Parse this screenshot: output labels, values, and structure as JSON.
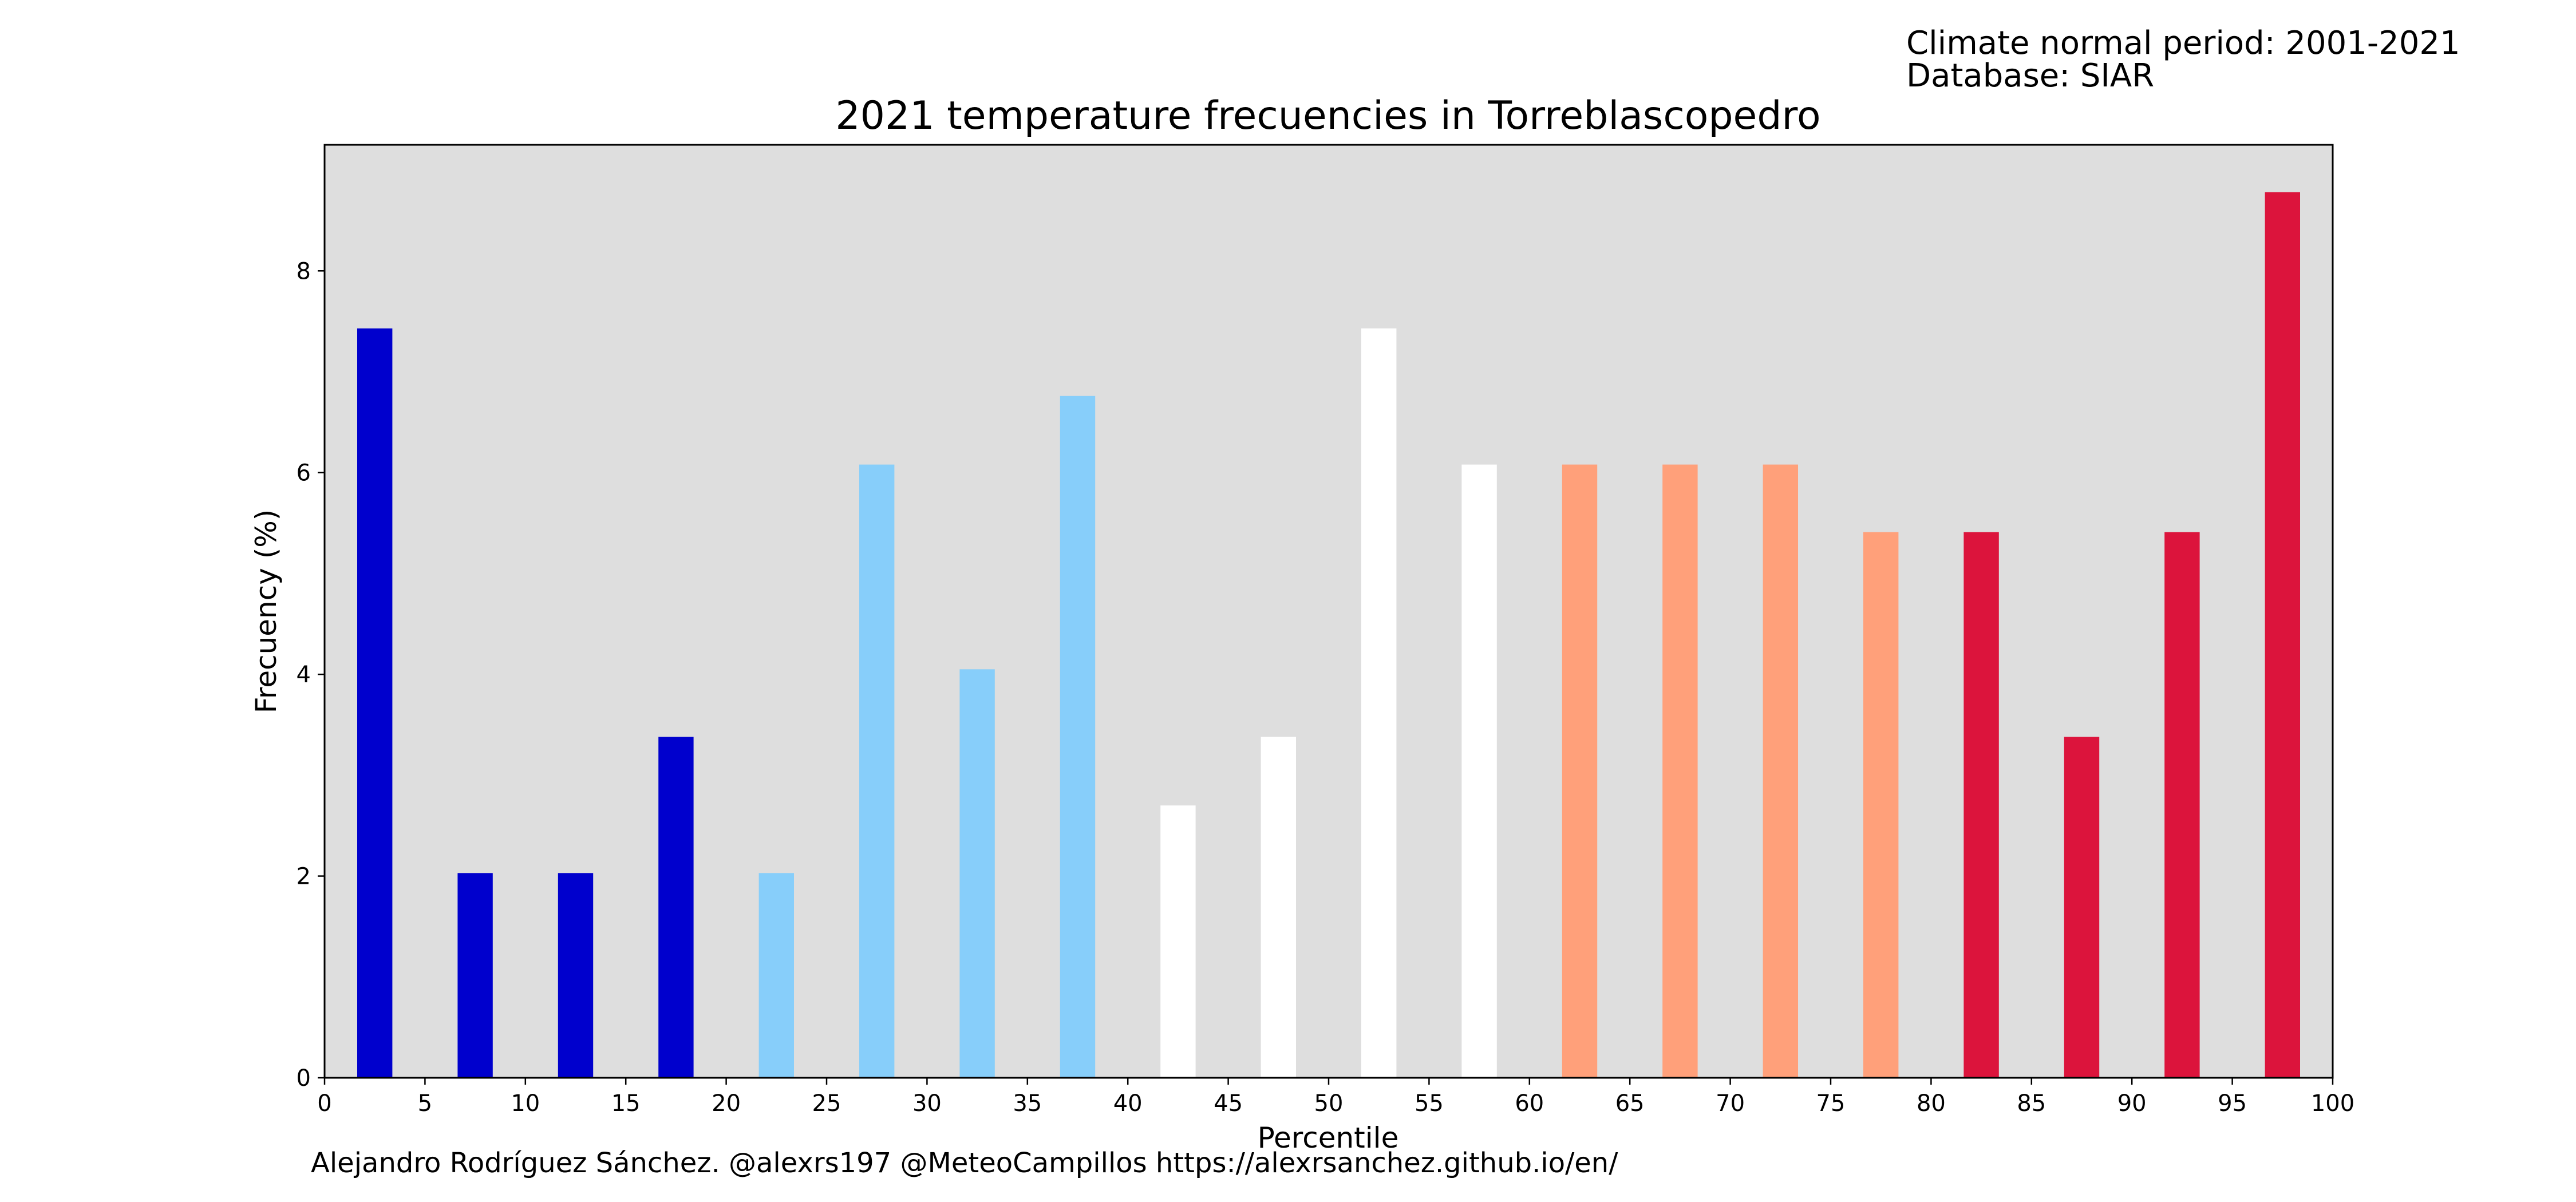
{
  "header": {
    "normal_period": "Climate normal period: 2001-2021",
    "database": "Database: SIAR"
  },
  "footer": {
    "credit": "Alejandro Rodríguez Sánchez. @alexrs197 @MeteoCampillos   https://alexrsanchez.github.io/en/"
  },
  "colors": {
    "plot_background": "#dedede",
    "very_cold": "#0000cd",
    "cold": "#87cefa",
    "normal": "#ffffff",
    "warm": "#ffa07a",
    "very_warm": "#dc143c"
  },
  "chart_data": {
    "type": "bar",
    "title": "2021 temperature frecuencies in Torreblascopedro",
    "xlabel": "Percentile",
    "ylabel": "Frecuency (%)",
    "xlim": [
      0,
      100
    ],
    "ylim": [
      0,
      9.25
    ],
    "xticks": [
      "0",
      "5",
      "10",
      "15",
      "20",
      "25",
      "30",
      "35",
      "40",
      "45",
      "50",
      "55",
      "60",
      "65",
      "70",
      "75",
      "80",
      "85",
      "90",
      "95",
      "100"
    ],
    "yticks": [
      "0",
      "2",
      "4",
      "6",
      "8"
    ],
    "grid": false,
    "legend": "none",
    "x": [
      2.5,
      7.5,
      12.5,
      17.5,
      22.5,
      27.5,
      32.5,
      37.5,
      42.5,
      47.5,
      52.5,
      57.5,
      62.5,
      67.5,
      72.5,
      77.5,
      82.5,
      87.5,
      92.5,
      97.5
    ],
    "values": [
      7.43,
      2.03,
      2.03,
      3.38,
      2.03,
      6.08,
      4.05,
      6.76,
      2.7,
      3.38,
      7.43,
      6.08,
      6.08,
      6.08,
      6.08,
      5.41,
      5.41,
      3.38,
      5.41,
      8.78
    ],
    "bar_colors": [
      "very_cold",
      "very_cold",
      "very_cold",
      "very_cold",
      "cold",
      "cold",
      "cold",
      "cold",
      "normal",
      "normal",
      "normal",
      "normal",
      "warm",
      "warm",
      "warm",
      "warm",
      "very_warm",
      "very_warm",
      "very_warm",
      "very_warm"
    ]
  }
}
